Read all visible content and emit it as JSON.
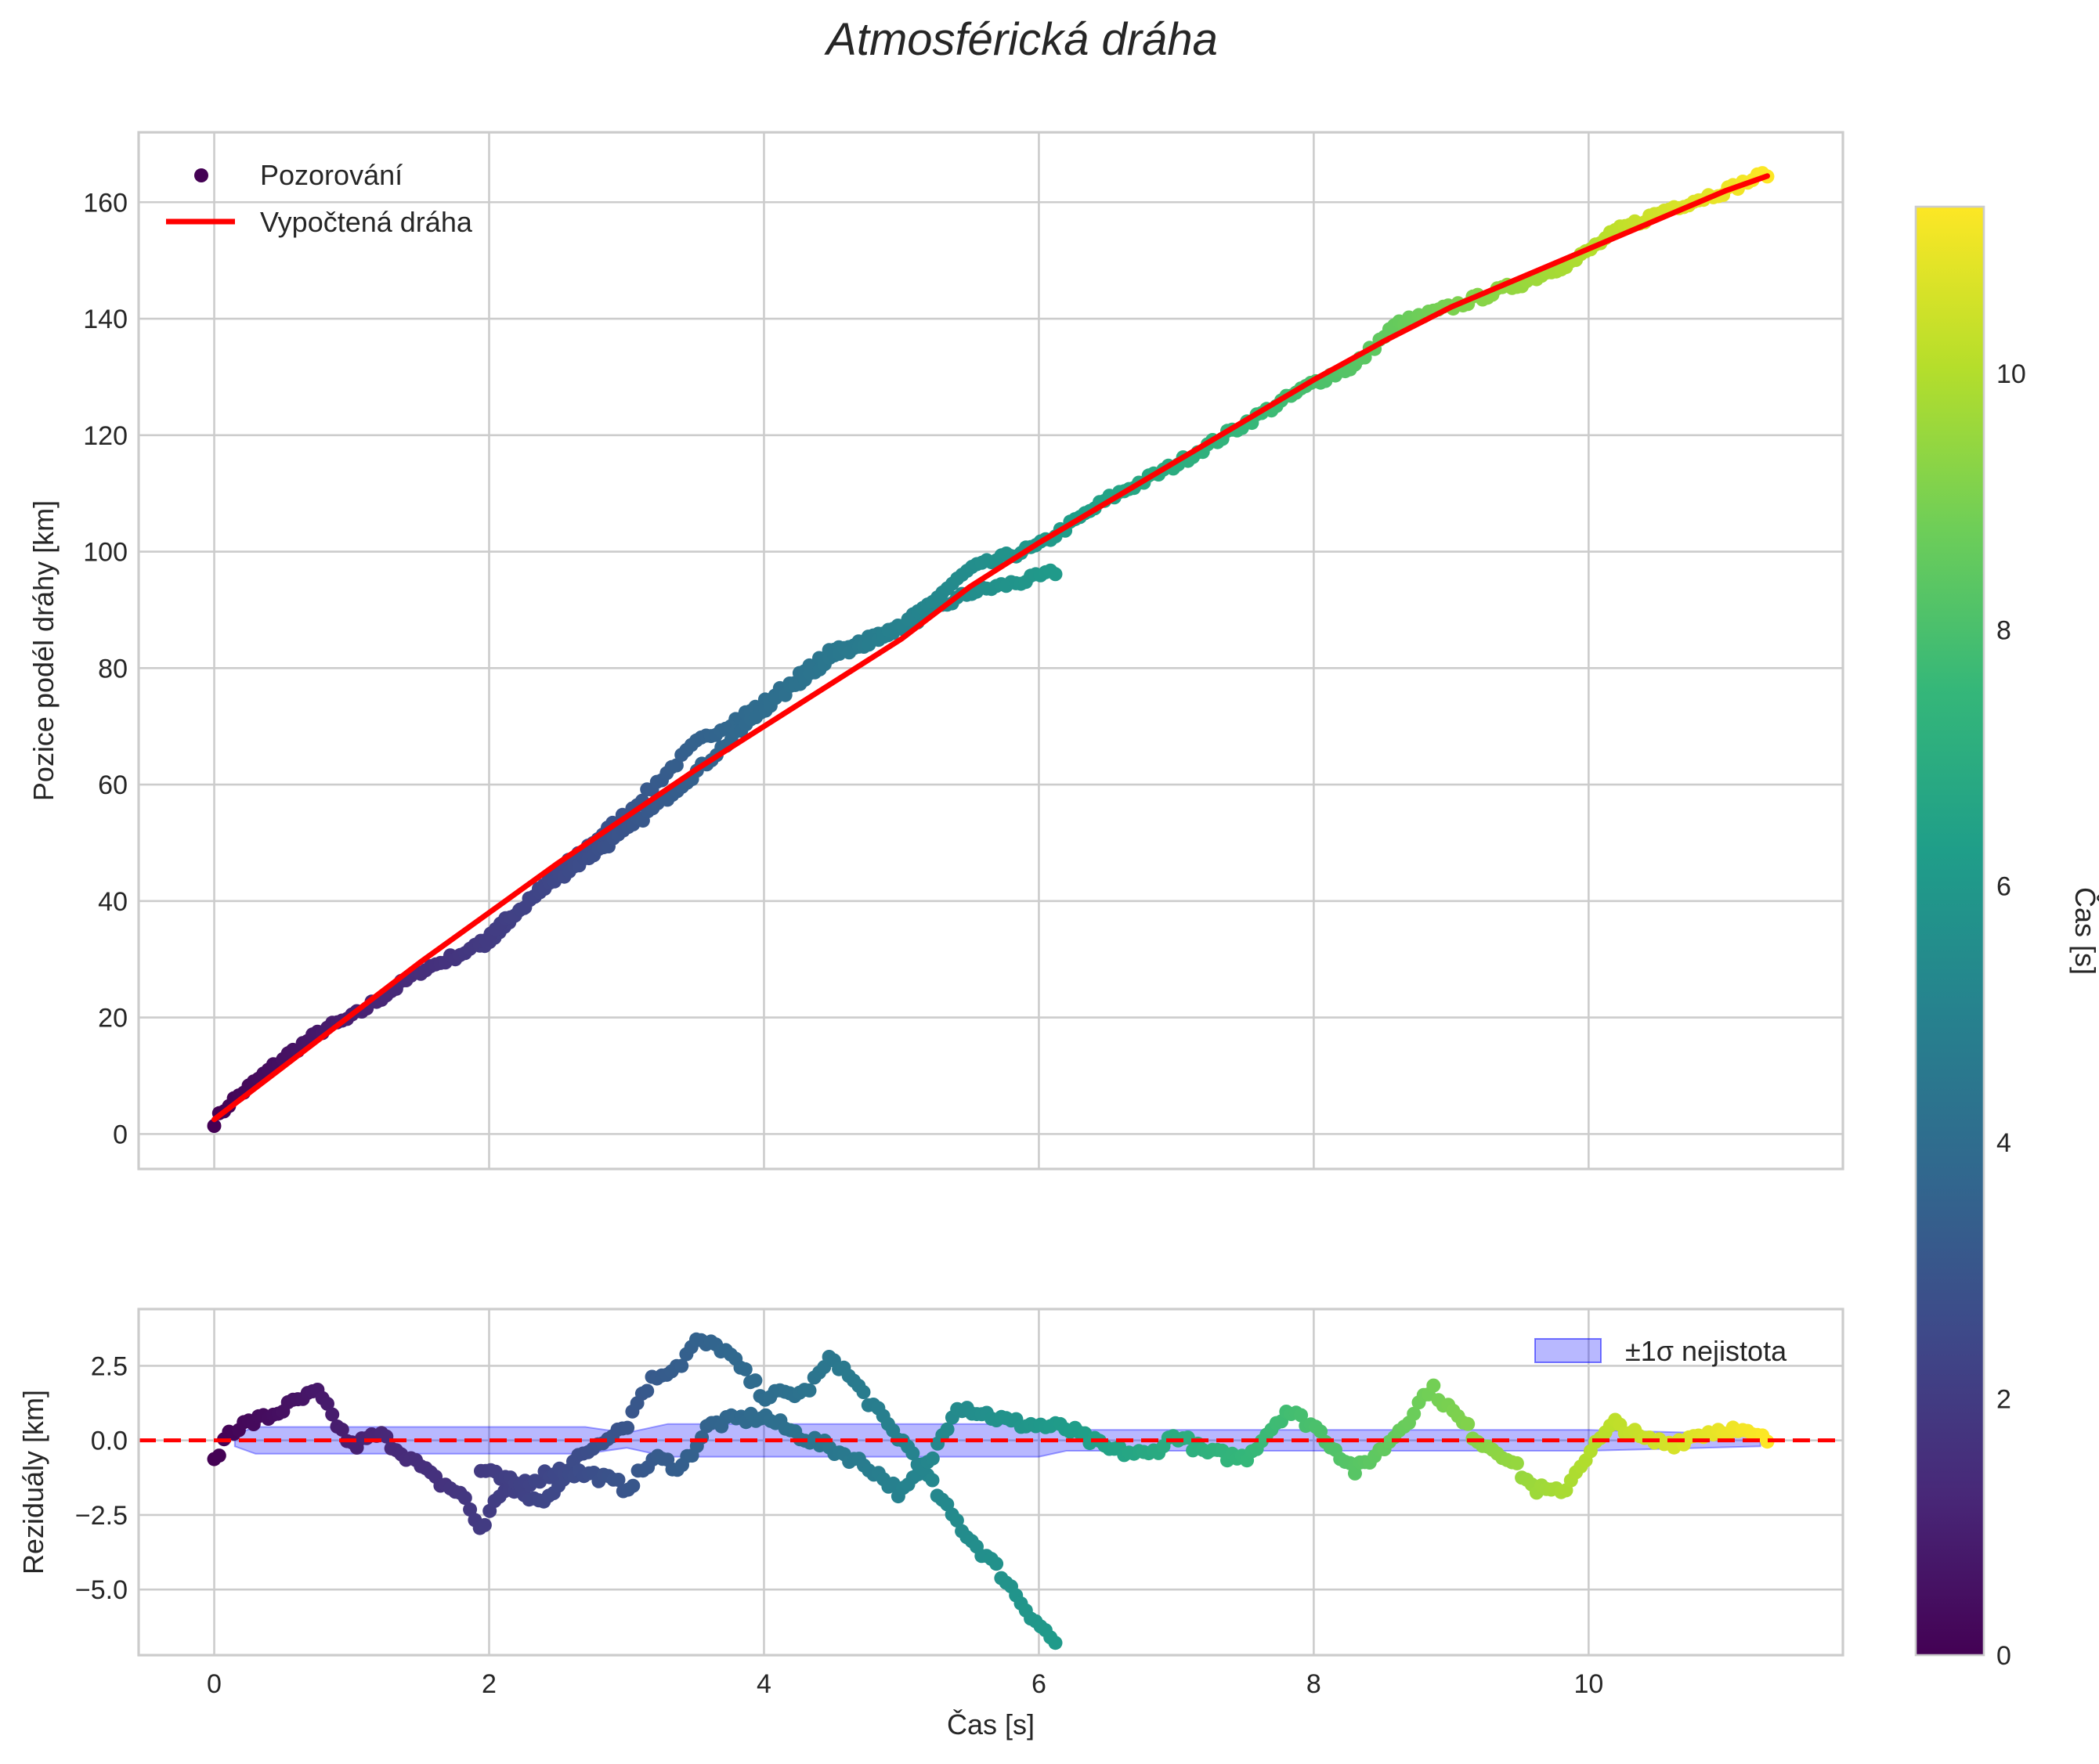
{
  "title": "Atmosférická dráha",
  "colors": {
    "fit_line": "#ff0000",
    "band_fill": "#0000ff",
    "zero_line": "#ff0000",
    "grid": "#cccccc",
    "text": "#262626"
  },
  "chart_data": [
    {
      "type": "scatter",
      "title": "Atmosférická dráha",
      "xlabel": "",
      "ylabel": "Pozice podél dráhy [km]",
      "xlim": [
        -0.55,
        11.85
      ],
      "ylim": [
        -6,
        172
      ],
      "xticks": [
        0,
        2,
        4,
        6,
        8,
        10
      ],
      "yticks": [
        0,
        20,
        40,
        60,
        80,
        100,
        120,
        140,
        160
      ],
      "grid": true,
      "legend": {
        "position": "top-left",
        "entries": [
          "Pozorování",
          "Vypočtená dráha"
        ]
      },
      "series": [
        {
          "name": "Pozorování",
          "type": "scatter",
          "color_by": "Čas [s]",
          "cmap": "viridis",
          "segments": [
            {
              "t_start": 0.0,
              "t_end": 6.12,
              "x_start": 0.0,
              "x_end": 6.12,
              "anchors_x": [
                0.0,
                0.1,
                0.2,
                0.5,
                0.8,
                1.0,
                1.5,
                2.0,
                2.5,
                3.0,
                3.5,
                4.0,
                4.5,
                5.0,
                5.5,
                5.9,
                6.12
              ],
              "anchors_y": [
                2,
                5,
                7,
                13,
                18,
                20,
                28,
                33,
                45,
                55,
                67,
                74,
                83,
                87,
                93,
                95,
                96.5
              ]
            },
            {
              "t_start": 1.94,
              "t_end": 8.3,
              "x_start": 1.94,
              "x_end": 8.3,
              "anchors_x": [
                1.94,
                2.5,
                3.0,
                3.5,
                4.0,
                4.5,
                5.0,
                5.3,
                5.5,
                6.0,
                6.5,
                7.0,
                7.5,
                8.0,
                8.3
              ],
              "anchors_y": [
                33,
                44,
                52,
                62,
                73,
                82,
                87,
                93,
                97,
                101,
                109,
                115,
                122,
                129,
                132
              ]
            },
            {
              "t_start": 8.3,
              "t_end": 11.3,
              "x_start": 8.3,
              "x_end": 11.3,
              "anchors_x": [
                8.3,
                8.6,
                9.0,
                9.5,
                9.9,
                10.2,
                10.6,
                11.0,
                11.3
              ],
              "anchors_y": [
                132,
                139,
                142,
                146,
                150,
                155,
                159,
                162,
                165
              ]
            }
          ]
        },
        {
          "name": "Vypočtená dráha",
          "type": "line",
          "x": [
            0.0,
            0.5,
            1.0,
            1.5,
            2.0,
            2.5,
            3.0,
            3.5,
            4.0,
            4.5,
            5.0,
            5.5,
            6.0,
            6.5,
            7.0,
            7.5,
            8.0,
            8.5,
            9.0,
            9.5,
            10.0,
            10.5,
            11.0,
            11.3
          ],
          "y": [
            2.5,
            11.5,
            20.5,
            29.5,
            38.0,
            46.5,
            54.5,
            62.5,
            70.0,
            77.5,
            85.0,
            94.0,
            101.5,
            108.5,
            115.5,
            122.5,
            129.5,
            136.0,
            142.0,
            147.0,
            152.0,
            157.0,
            162.0,
            164.5
          ]
        }
      ]
    },
    {
      "type": "scatter",
      "title": "",
      "xlabel": "Čas [s]",
      "ylabel": "Reziduály [km]",
      "xlim": [
        -0.55,
        11.85
      ],
      "ylim": [
        -7.2,
        4.4
      ],
      "xticks": [
        0,
        2,
        4,
        6,
        8,
        10
      ],
      "xtick_labels": [
        "0",
        "2",
        "4",
        "6",
        "8",
        "10"
      ],
      "yticks": [
        -5.0,
        -2.5,
        0.0,
        2.5
      ],
      "ytick_labels": [
        "−5.0",
        "−2.5",
        "0.0",
        "2.5"
      ],
      "grid": true,
      "legend": {
        "position": "top-right",
        "entries": [
          "±1σ nejistota"
        ]
      },
      "series": [
        {
          "name": "Reziduály",
          "type": "scatter",
          "color_by": "Čas [s]",
          "cmap": "viridis",
          "segments": [
            {
              "t_start": 0.0,
              "t_end": 6.12,
              "x_start": 0.0,
              "x_end": 6.12,
              "anchors_x": [
                0.0,
                0.1,
                0.2,
                0.4,
                0.6,
                0.75,
                0.9,
                1.0,
                1.2,
                1.4,
                1.6,
                1.8,
                1.94,
                2.1,
                2.4,
                2.6,
                2.9,
                3.0,
                3.1,
                3.2,
                3.4,
                3.5,
                3.7,
                4.0,
                4.3,
                4.5,
                4.7,
                4.9,
                5.1,
                5.3,
                5.5,
                5.7,
                5.9,
                6.12
              ],
              "anchors_y": [
                -0.8,
                0.3,
                0.5,
                0.8,
                1.3,
                1.6,
                0.5,
                -0.2,
                0.2,
                -0.5,
                -1.3,
                -1.8,
                -3.0,
                -1.6,
                -2.1,
                -0.8,
                0.3,
                0.5,
                1.5,
                2.1,
                2.6,
                3.3,
                3.1,
                1.5,
                1.6,
                2.8,
                1.7,
                0.5,
                -0.5,
                -2.1,
                -3.3,
                -4.3,
                -5.6,
                -6.8
              ]
            },
            {
              "t_start": 1.94,
              "t_end": 8.3,
              "x_start": 1.94,
              "x_end": 8.3,
              "anchors_x": [
                1.94,
                2.2,
                2.5,
                2.8,
                3.0,
                3.2,
                3.4,
                3.6,
                3.8,
                4.0,
                4.2,
                4.4,
                4.6,
                4.8,
                5.0,
                5.2,
                5.4,
                5.6,
                5.8,
                6.0,
                6.2,
                6.5,
                6.8,
                7.0,
                7.2,
                7.5,
                7.8,
                8.0,
                8.3
              ],
              "anchors_y": [
                -1.0,
                -1.5,
                -1.0,
                -1.2,
                -1.6,
                -0.6,
                -0.9,
                0.5,
                0.7,
                0.8,
                0.3,
                -0.1,
                -0.5,
                -1.0,
                -1.8,
                -0.8,
                1.2,
                0.9,
                0.6,
                0.5,
                0.4,
                -0.3,
                -0.5,
                0.2,
                -0.4,
                -0.6,
                1.0,
                0.5,
                -1.0
              ]
            },
            {
              "t_start": 8.3,
              "t_end": 11.3,
              "x_start": 8.3,
              "x_end": 11.3,
              "anchors_x": [
                8.3,
                8.5,
                8.7,
                8.85,
                9.0,
                9.2,
                9.4,
                9.6,
                9.8,
                10.0,
                10.2,
                10.4,
                10.6,
                10.8,
                11.0,
                11.3
              ],
              "anchors_y": [
                -1.0,
                -0.3,
                0.8,
                1.8,
                1.0,
                0.0,
                -0.5,
                -1.6,
                -1.8,
                -0.4,
                0.6,
                0.0,
                -0.1,
                0.2,
                0.4,
                0.0
              ]
            }
          ]
        },
        {
          "name": "±1σ nejistota",
          "type": "area",
          "x": [
            0.15,
            0.3,
            2.7,
            3.0,
            3.3,
            6.0,
            6.2,
            8.0,
            10.0,
            11.25
          ],
          "upper": [
            0.2,
            0.45,
            0.45,
            0.25,
            0.55,
            0.55,
            0.35,
            0.35,
            0.35,
            0.2
          ],
          "lower": [
            -0.2,
            -0.45,
            -0.45,
            -0.25,
            -0.55,
            -0.55,
            -0.35,
            -0.35,
            -0.35,
            -0.2
          ]
        },
        {
          "name": "zero",
          "type": "hline",
          "y": 0.0
        }
      ]
    },
    {
      "type": "colorbar",
      "label": "Čas [s]",
      "cmap": "viridis",
      "range": [
        0,
        11.3
      ],
      "ticks": [
        0,
        2,
        4,
        6,
        8,
        10
      ]
    }
  ]
}
